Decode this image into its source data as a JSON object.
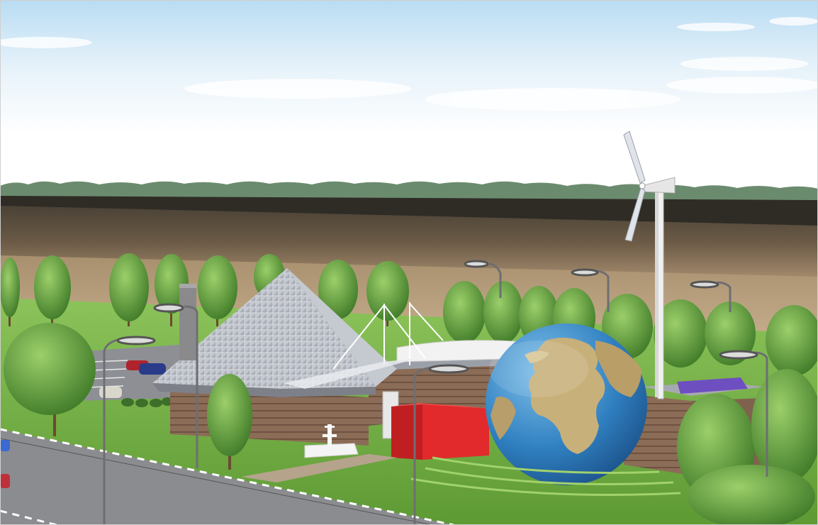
{
  "scene": {
    "kind": "architectural-rendering",
    "colors": {
      "sky_top": "#bfe0f4",
      "sky_bottom": "#ffffff",
      "forest": "#6a8a6a",
      "dark_field": "#3e3a30",
      "field": "#6a5a45",
      "far_field": "#b59e82",
      "lawn": "#7fb64a",
      "road": "#8c8c8e",
      "roof": "#b8bcc4",
      "wood": "#8a6a55",
      "red_block": "#e0282a",
      "globe_ocean": "#2f7fc0",
      "globe_land": "#c9b27a",
      "tree": "#5f9a3a"
    },
    "objects": [
      {
        "name": "pyramid-roof"
      },
      {
        "name": "globe-dome"
      },
      {
        "name": "wind-turbine"
      },
      {
        "name": "fountain"
      },
      {
        "name": "parking-lot"
      },
      {
        "name": "road"
      },
      {
        "name": "street-lamp"
      }
    ]
  }
}
